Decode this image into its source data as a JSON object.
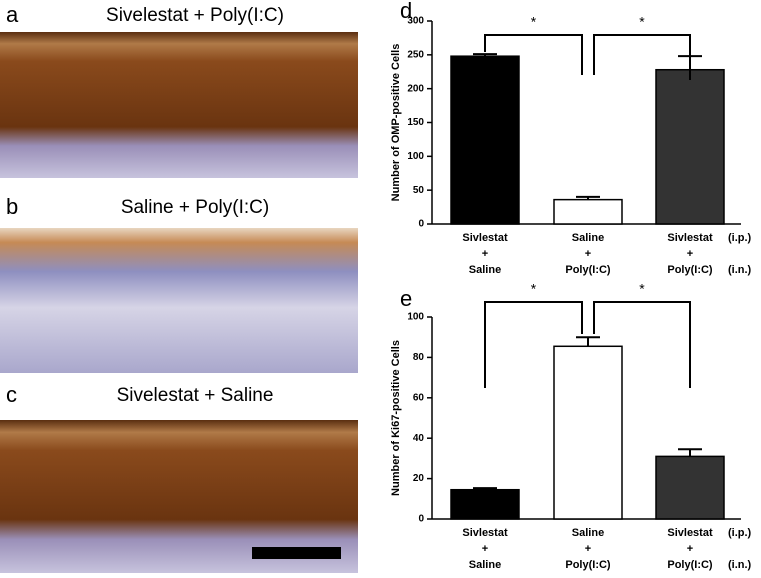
{
  "panels": [
    {
      "letter": "a",
      "title": "Sivelestat + Poly(I:C)"
    },
    {
      "letter": "b",
      "title": "Saline + Poly(I:C)"
    },
    {
      "letter": "c",
      "title": "Sivelestat + Saline"
    }
  ],
  "chart_data": [
    {
      "type": "bar",
      "letter": "d",
      "y_label": "Number of OMP-positive Cells",
      "categories": [
        [
          "Sivlestat",
          "+",
          "Saline"
        ],
        [
          "Saline",
          "+",
          "Poly(I:C)"
        ],
        [
          "Sivlestat",
          "+",
          "Poly(I:C)"
        ]
      ],
      "row_labels": [
        "(i.p.)",
        "(i.n.)"
      ],
      "values": [
        248,
        36,
        228
      ],
      "errors": [
        3,
        4,
        20
      ],
      "colors": [
        "#000000",
        "#ffffff",
        "#333333"
      ],
      "ylim": [
        0,
        300
      ],
      "yticks": [
        0,
        50,
        100,
        150,
        200,
        250,
        300
      ],
      "annotations": [
        "*",
        "*"
      ]
    },
    {
      "type": "bar",
      "letter": "e",
      "y_label": "Number of Ki67-positive Cells",
      "categories": [
        [
          "Sivlestat",
          "+",
          "Saline"
        ],
        [
          "Saline",
          "+",
          "Poly(I:C)"
        ],
        [
          "Sivlestat",
          "+",
          "Poly(I:C)"
        ]
      ],
      "row_labels": [
        "(i.p.)",
        "(i.n.)"
      ],
      "values": [
        14.5,
        85.5,
        31
      ],
      "errors": [
        0.8,
        4.5,
        3.5
      ],
      "colors": [
        "#000000",
        "#ffffff",
        "#333333"
      ],
      "ylim": [
        0,
        100
      ],
      "yticks": [
        0,
        20,
        40,
        60,
        80,
        100
      ],
      "annotations": [
        "*",
        "*"
      ]
    }
  ]
}
